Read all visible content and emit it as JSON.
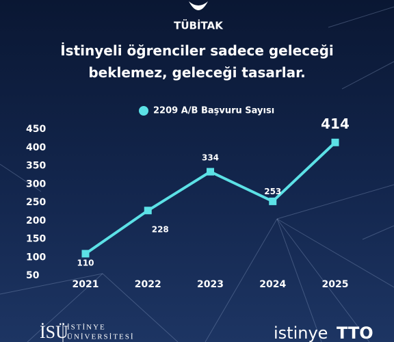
{
  "header": {
    "logo": "TÜBİTAK"
  },
  "chart_data": {
    "type": "line",
    "title": "İstinyeli öğrenciler sadece geleceği beklemez, geleceği tasarlar.",
    "categories": [
      "2021",
      "2022",
      "2023",
      "2024",
      "2025"
    ],
    "series": [
      {
        "name": "2209 A/B Başvuru Sayısı",
        "color": "#5ce1e6",
        "values": [
          110,
          228,
          334,
          253,
          414
        ]
      }
    ],
    "ylim": [
      50,
      450
    ],
    "yticks": [
      50,
      100,
      150,
      200,
      250,
      300,
      350,
      400,
      450
    ],
    "grid": false,
    "legend": "top"
  },
  "footer": {
    "left_logo": "İSÜ",
    "university": [
      "İSTİNYE",
      "ÜNİVERSİTESİ"
    ],
    "tto_prefix": "istinye",
    "tto_suffix": "TTO"
  }
}
